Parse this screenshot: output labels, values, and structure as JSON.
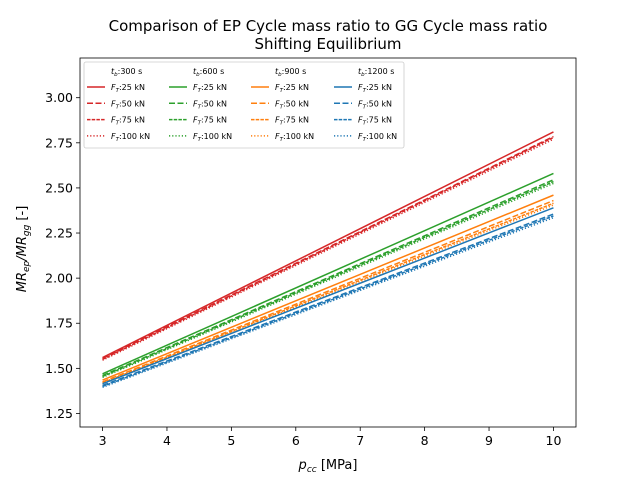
{
  "chart_data": {
    "type": "line",
    "title": "Comparison of EP Cycle mass ratio to GG Cycle mass ratio",
    "subtitle": "Shifting Equilibrium",
    "xlabel": "p_cc [MPa]",
    "ylabel": "MR_ep/MR_gg [-]",
    "xlim": [
      2.65,
      10.35
    ],
    "ylim": [
      1.175,
      3.22
    ],
    "xticks": [
      3,
      4,
      5,
      6,
      7,
      8,
      9,
      10
    ],
    "yticks": [
      1.25,
      1.5,
      1.75,
      2.0,
      2.25,
      2.5,
      2.75,
      3.0
    ],
    "xtick_labels": [
      "3",
      "4",
      "5",
      "6",
      "7",
      "8",
      "9",
      "10"
    ],
    "ytick_labels": [
      "1.25",
      "1.50",
      "1.75",
      "2.00",
      "2.25",
      "2.50",
      "2.75",
      "3.00"
    ],
    "grid": false,
    "legend_position": "top-left",
    "legend_columns": [
      {
        "header": "t_b:300 s",
        "header_t": "t",
        "header_sub": "b",
        "header_rest": ":300 s",
        "color": "#d62728"
      },
      {
        "header": "t_b:600 s",
        "header_t": "t",
        "header_sub": "b",
        "header_rest": ":600 s",
        "color": "#2ca02c"
      },
      {
        "header": "t_b:900 s",
        "header_t": "t",
        "header_sub": "b",
        "header_rest": ":900 s",
        "color": "#ff7f0e"
      },
      {
        "header": "t_b:1200 s",
        "header_t": "t",
        "header_sub": "b",
        "header_rest": ":1200 s",
        "color": "#1f77b4"
      }
    ],
    "legend_thrusts": [
      {
        "label": "F_T:25 kN",
        "rest": ":25 kN",
        "dash": ""
      },
      {
        "label": "F_T:50 kN",
        "rest": ":50 kN",
        "dash": "6,2.5"
      },
      {
        "label": "F_T:75 kN",
        "rest": ":75 kN",
        "dash": "3.5,1.2"
      },
      {
        "label": "F_T:100 kN",
        "rest": ":100 kN",
        "dash": "1.2,2"
      }
    ],
    "series": [
      {
        "name": "t_b:300 s F_T:25 kN",
        "color": "#d62728",
        "dash": "",
        "x": [
          3,
          10
        ],
        "y": [
          1.56,
          2.81
        ]
      },
      {
        "name": "t_b:300 s F_T:50 kN",
        "color": "#d62728",
        "dash": "6,2.5",
        "x": [
          3,
          10
        ],
        "y": [
          1.555,
          2.785
        ]
      },
      {
        "name": "t_b:300 s F_T:75 kN",
        "color": "#d62728",
        "dash": "3.5,1.2",
        "x": [
          3,
          10
        ],
        "y": [
          1.55,
          2.78
        ]
      },
      {
        "name": "t_b:300 s F_T:100 kN",
        "color": "#d62728",
        "dash": "1.2,2",
        "x": [
          3,
          10
        ],
        "y": [
          1.545,
          2.77
        ]
      },
      {
        "name": "t_b:600 s F_T:25 kN",
        "color": "#2ca02c",
        "dash": "",
        "x": [
          3,
          10
        ],
        "y": [
          1.47,
          2.58
        ]
      },
      {
        "name": "t_b:600 s F_T:50 kN",
        "color": "#2ca02c",
        "dash": "6,2.5",
        "x": [
          3,
          10
        ],
        "y": [
          1.46,
          2.545
        ]
      },
      {
        "name": "t_b:600 s F_T:75 kN",
        "color": "#2ca02c",
        "dash": "3.5,1.2",
        "x": [
          3,
          10
        ],
        "y": [
          1.455,
          2.535
        ]
      },
      {
        "name": "t_b:600 s F_T:100 kN",
        "color": "#2ca02c",
        "dash": "1.2,2",
        "x": [
          3,
          10
        ],
        "y": [
          1.45,
          2.525
        ]
      },
      {
        "name": "t_b:900 s F_T:25 kN",
        "color": "#ff7f0e",
        "dash": "",
        "x": [
          3,
          10
        ],
        "y": [
          1.435,
          2.46
        ]
      },
      {
        "name": "t_b:900 s F_T:50 kN",
        "color": "#ff7f0e",
        "dash": "6,2.5",
        "x": [
          3,
          10
        ],
        "y": [
          1.425,
          2.43
        ]
      },
      {
        "name": "t_b:900 s F_T:75 kN",
        "color": "#ff7f0e",
        "dash": "3.5,1.2",
        "x": [
          3,
          10
        ],
        "y": [
          1.42,
          2.415
        ]
      },
      {
        "name": "t_b:900 s F_T:100 kN",
        "color": "#ff7f0e",
        "dash": "1.2,2",
        "x": [
          3,
          10
        ],
        "y": [
          1.415,
          2.405
        ]
      },
      {
        "name": "t_b:1200 s F_T:25 kN",
        "color": "#1f77b4",
        "dash": "",
        "x": [
          3,
          10
        ],
        "y": [
          1.415,
          2.39
        ]
      },
      {
        "name": "t_b:1200 s F_T:50 kN",
        "color": "#1f77b4",
        "dash": "6,2.5",
        "x": [
          3,
          10
        ],
        "y": [
          1.405,
          2.355
        ]
      },
      {
        "name": "t_b:1200 s F_T:75 kN",
        "color": "#1f77b4",
        "dash": "3.5,1.2",
        "x": [
          3,
          10
        ],
        "y": [
          1.4,
          2.345
        ]
      },
      {
        "name": "t_b:1200 s F_T:100 kN",
        "color": "#1f77b4",
        "dash": "1.2,2",
        "x": [
          3,
          10
        ],
        "y": [
          1.395,
          2.335
        ]
      }
    ]
  }
}
